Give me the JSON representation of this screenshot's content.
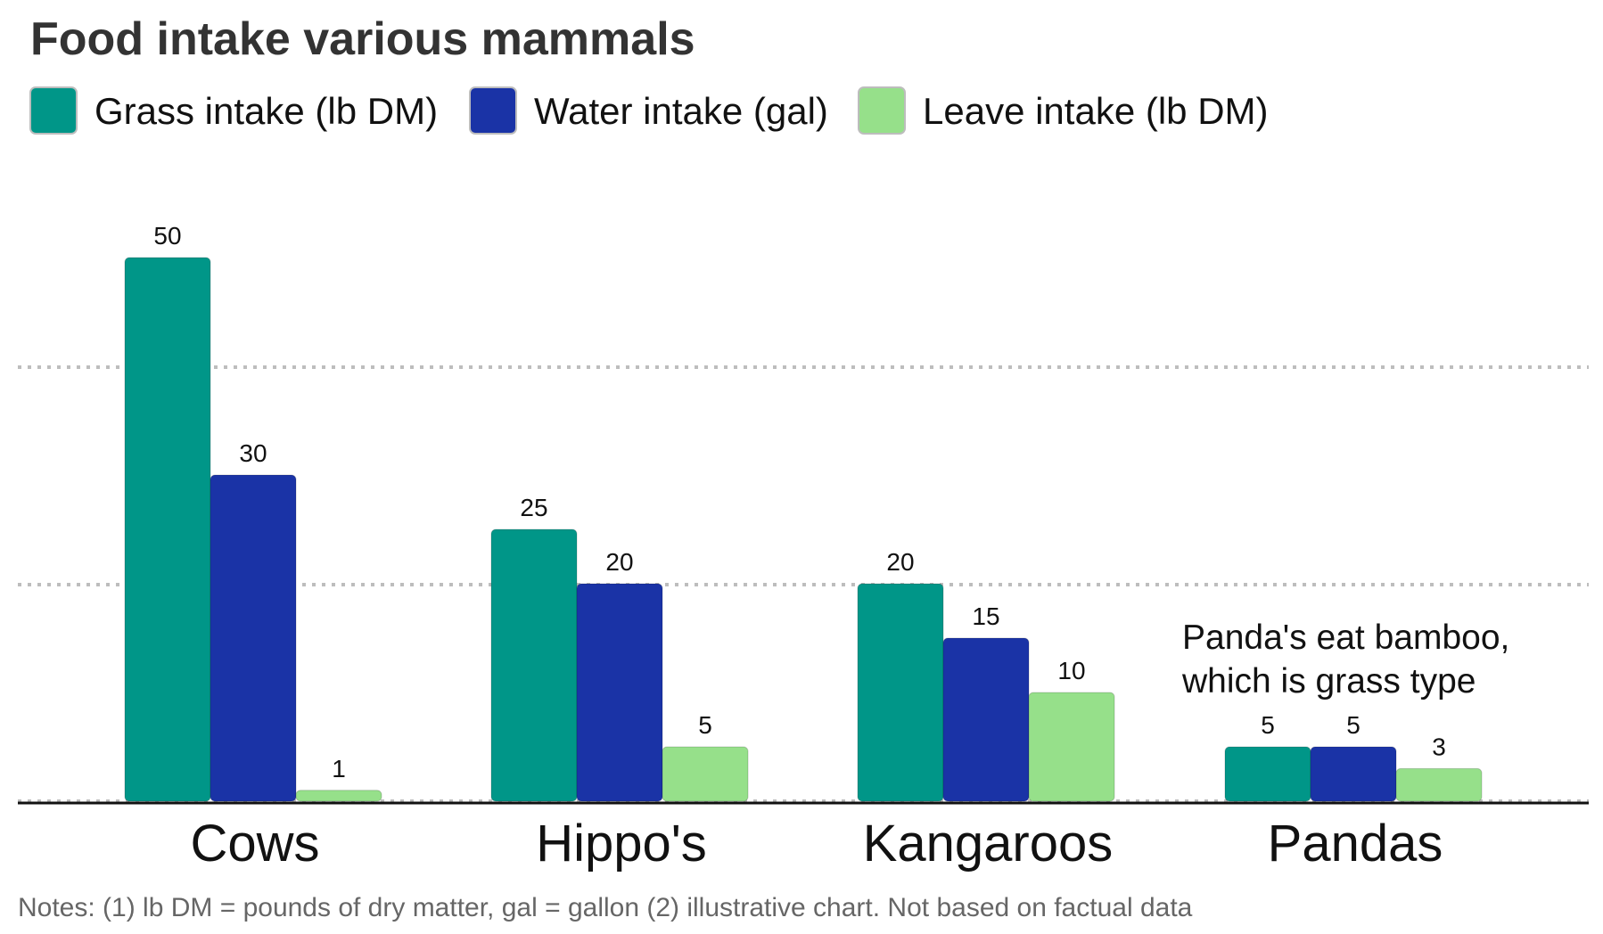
{
  "chart_data": {
    "type": "bar",
    "title": "Food intake various mammals",
    "categories": [
      "Cows",
      "Hippo's",
      "Kangaroos",
      "Pandas"
    ],
    "series": [
      {
        "name": "Grass intake (lb DM)",
        "color": "#009688",
        "values": [
          50,
          25,
          20,
          5
        ]
      },
      {
        "name": "Water intake (gal)",
        "color": "#1a33a6",
        "values": [
          30,
          20,
          15,
          5
        ]
      },
      {
        "name": "Leave intake (lb DM)",
        "color": "#96e08a",
        "values": [
          1,
          5,
          10,
          3
        ]
      }
    ],
    "ylim": [
      0,
      50
    ],
    "gridlines": [
      0,
      20,
      40
    ],
    "grid": true,
    "legend_position": "top-left",
    "xlabel": "",
    "ylabel": "",
    "annotation": {
      "lines": [
        "Panda's eat bamboo,",
        "which is grass type"
      ]
    },
    "note": "Notes: (1) lb DM = pounds of dry matter, gal = gallon (2) illustrative chart. Not based on factual data"
  }
}
